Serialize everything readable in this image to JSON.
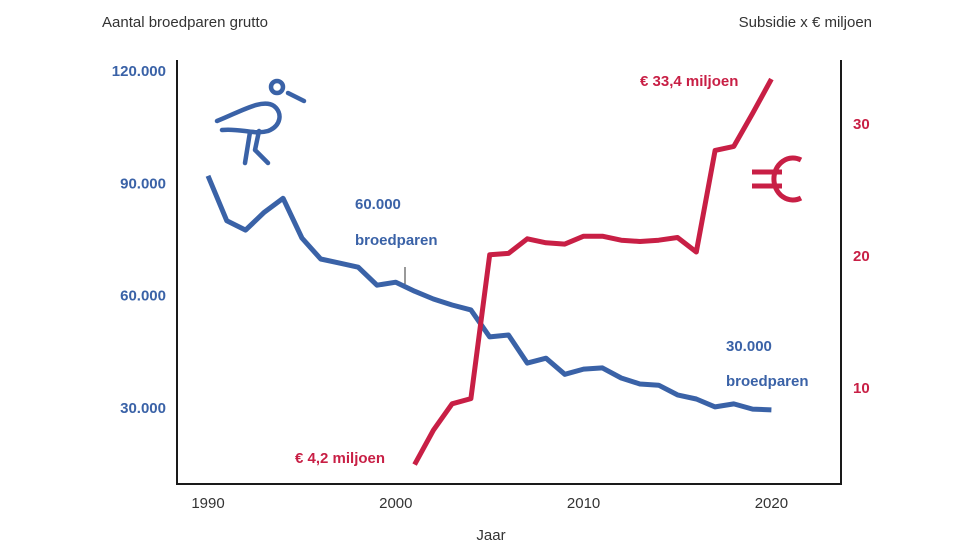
{
  "chart_data": {
    "type": "line",
    "title": "",
    "xlabel": "Jaar",
    "ylabel_left": "Aantal broedparen grutto",
    "ylabel_right": "Subsidie x € miljoen",
    "x_ticks": [
      "1990",
      "2000",
      "2010",
      "2020"
    ],
    "x_range": [
      1988,
      2023
    ],
    "y_left_ticks": [
      {
        "value": 30000,
        "label": "30.000"
      },
      {
        "value": 60000,
        "label": "60.000"
      },
      {
        "value": 90000,
        "label": "90.000"
      },
      {
        "value": 120000,
        "label": "120.000"
      }
    ],
    "y_left_range": [
      10700,
      124000
    ],
    "y_right_ticks": [
      {
        "value": 10,
        "label": "10"
      },
      {
        "value": 20,
        "label": "20"
      },
      {
        "value": 30,
        "label": "30"
      }
    ],
    "y_right_range": [
      2.6,
      35.0
    ],
    "grid": false,
    "series": [
      {
        "name": "Aantal broedparen grutto",
        "axis": "left",
        "color": "#3a62a7",
        "x": [
          1990,
          1991,
          1992,
          1993,
          1994,
          1995,
          1996,
          1997,
          1998,
          1999,
          2000,
          2001,
          2002,
          2003,
          2004,
          2005,
          2006,
          2007,
          2008,
          2009,
          2010,
          2011,
          2012,
          2013,
          2014,
          2015,
          2016,
          2017,
          2018,
          2019,
          2020
        ],
        "values": [
          92000,
          80000,
          77500,
          82300,
          86000,
          75400,
          69800,
          68700,
          67600,
          62800,
          63600,
          61200,
          59100,
          57500,
          56200,
          49000,
          49500,
          42000,
          43300,
          39000,
          40400,
          40700,
          38000,
          36400,
          36100,
          33500,
          32400,
          30300,
          31100,
          29700,
          29500
        ]
      },
      {
        "name": "Subsidie x € miljoen",
        "axis": "right",
        "color": "#c81f45",
        "x": [
          2001,
          2002,
          2003,
          2004,
          2005,
          2006,
          2007,
          2008,
          2009,
          2010,
          2011,
          2012,
          2013,
          2014,
          2015,
          2016,
          2017,
          2018,
          2019,
          2020
        ],
        "values": [
          4.2,
          6.8,
          8.8,
          9.2,
          20.1,
          20.2,
          21.3,
          21.0,
          20.9,
          21.5,
          21.5,
          21.2,
          21.1,
          21.2,
          21.4,
          20.3,
          28.0,
          28.3,
          30.8,
          33.4
        ]
      }
    ],
    "annotations": [
      {
        "id": "ann-60000",
        "line1": "60.000",
        "line2": "broedparen",
        "color": "#3a62a7",
        "x": 2000.4,
        "y_axis": "left",
        "y": 63000
      },
      {
        "id": "ann-30000",
        "line1": "30.000",
        "line2": "broedparen",
        "color": "#3a62a7"
      },
      {
        "id": "ann-start",
        "text": "€ 4,2 miljoen",
        "color": "#c81f45"
      },
      {
        "id": "ann-end",
        "text": "€ 33,4 miljoen",
        "color": "#c81f45"
      }
    ],
    "icons": [
      "bird-grutto-icon",
      "euro-icon"
    ],
    "legend": "none"
  }
}
